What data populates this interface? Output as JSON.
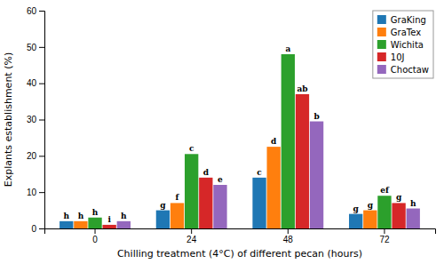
{
  "chart_data": {
    "type": "bar",
    "categories": [
      "0",
      "24",
      "48",
      "72"
    ],
    "series": [
      {
        "name": "GraKing",
        "values": [
          2.0,
          5.0,
          14.0,
          4.0
        ],
        "annotations": [
          "h",
          "g",
          "c",
          "g"
        ]
      },
      {
        "name": "GraTex",
        "values": [
          2.0,
          7.0,
          22.5,
          5.0
        ],
        "annotations": [
          "h",
          "f",
          "d",
          "g"
        ]
      },
      {
        "name": "Wichita",
        "values": [
          3.0,
          20.5,
          48.0,
          9.0
        ],
        "annotations": [
          "h",
          "c",
          "a",
          "ef"
        ]
      },
      {
        "name": "10J",
        "values": [
          1.0,
          14.0,
          37.0,
          7.0
        ],
        "annotations": [
          "i",
          "d",
          "ab",
          "g"
        ]
      },
      {
        "name": "Choctaw",
        "values": [
          2.0,
          12.0,
          29.5,
          5.5
        ],
        "annotations": [
          "h",
          "e",
          "b",
          "h"
        ]
      }
    ],
    "xlabel": "Chilling treatment (4°C) of different pecan (hours)",
    "ylabel": "Explants establishment (%)",
    "ylim": [
      0,
      60
    ],
    "yticks": [
      0,
      10,
      20,
      30,
      40,
      50,
      60
    ],
    "grid": false,
    "legend": "upper right"
  }
}
